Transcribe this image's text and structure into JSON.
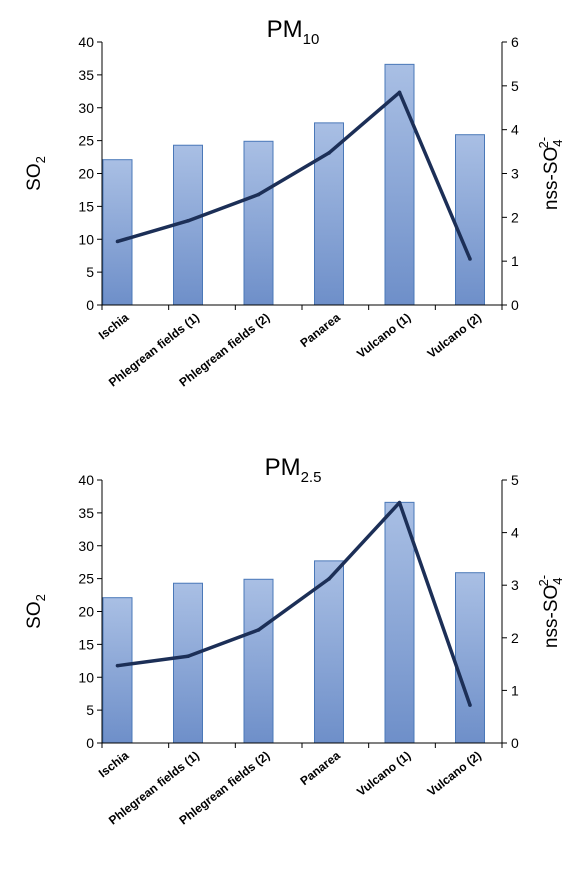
{
  "chart_data": [
    {
      "type": "bar+line",
      "title": "PM",
      "title_sub": "10",
      "categories": [
        "Ischia",
        "Phlegrean fields (1)",
        "Phlegrean fields (2)",
        "Panarea",
        "Vulcano (1)",
        "Vulcano (2)"
      ],
      "series": [
        {
          "name": "SO2",
          "type": "bar",
          "axis": "left",
          "values": [
            22.1,
            24.3,
            24.9,
            27.7,
            36.6,
            25.9
          ]
        },
        {
          "name": "nss-SO4 2-",
          "type": "line",
          "axis": "right",
          "values": [
            1.45,
            1.92,
            2.52,
            3.47,
            4.85,
            1.05
          ]
        }
      ],
      "ylabel_left": {
        "base": "SO",
        "sub": "2"
      },
      "ylabel_right": {
        "base": "nss-SO",
        "sub": "4",
        "sup": "2-"
      },
      "ylim_left": [
        0,
        40
      ],
      "ylim_right": [
        0,
        6
      ],
      "yticks_left": [
        "0",
        "5",
        "10",
        "15",
        "20",
        "25",
        "30",
        "35",
        "40"
      ],
      "yticks_right": [
        "0",
        "1",
        "2",
        "3",
        "4",
        "5",
        "6"
      ],
      "grid": false,
      "legend": "none",
      "bar_color": "#8faadc",
      "bar_edge": "#4a78b8",
      "line_color": "#1c2f57"
    },
    {
      "type": "bar+line",
      "title": "PM",
      "title_sub": "2.5",
      "categories": [
        "Ischia",
        "Phlegrean fields (1)",
        "Phlegrean fields (2)",
        "Panarea",
        "Vulcano (1)",
        "Vulcano (2)"
      ],
      "series": [
        {
          "name": "SO2",
          "type": "bar",
          "axis": "left",
          "values": [
            22.1,
            24.3,
            24.9,
            27.7,
            36.6,
            25.9
          ]
        },
        {
          "name": "nss-SO4 2-",
          "type": "line",
          "axis": "right",
          "values": [
            1.47,
            1.65,
            2.15,
            3.12,
            4.57,
            0.72
          ]
        }
      ],
      "ylabel_left": {
        "base": "SO",
        "sub": "2"
      },
      "ylabel_right": {
        "base": "nss-SO",
        "sub": "4",
        "sup": "2-"
      },
      "ylim_left": [
        0,
        40
      ],
      "ylim_right": [
        0,
        5
      ],
      "yticks_left": [
        "0",
        "5",
        "10",
        "15",
        "20",
        "25",
        "30",
        "35",
        "40"
      ],
      "yticks_right": [
        "0",
        "1",
        "2",
        "3",
        "4",
        "5"
      ],
      "grid": false,
      "legend": "none",
      "bar_color": "#8faadc",
      "bar_edge": "#4a78b8",
      "line_color": "#1c2f57"
    }
  ]
}
